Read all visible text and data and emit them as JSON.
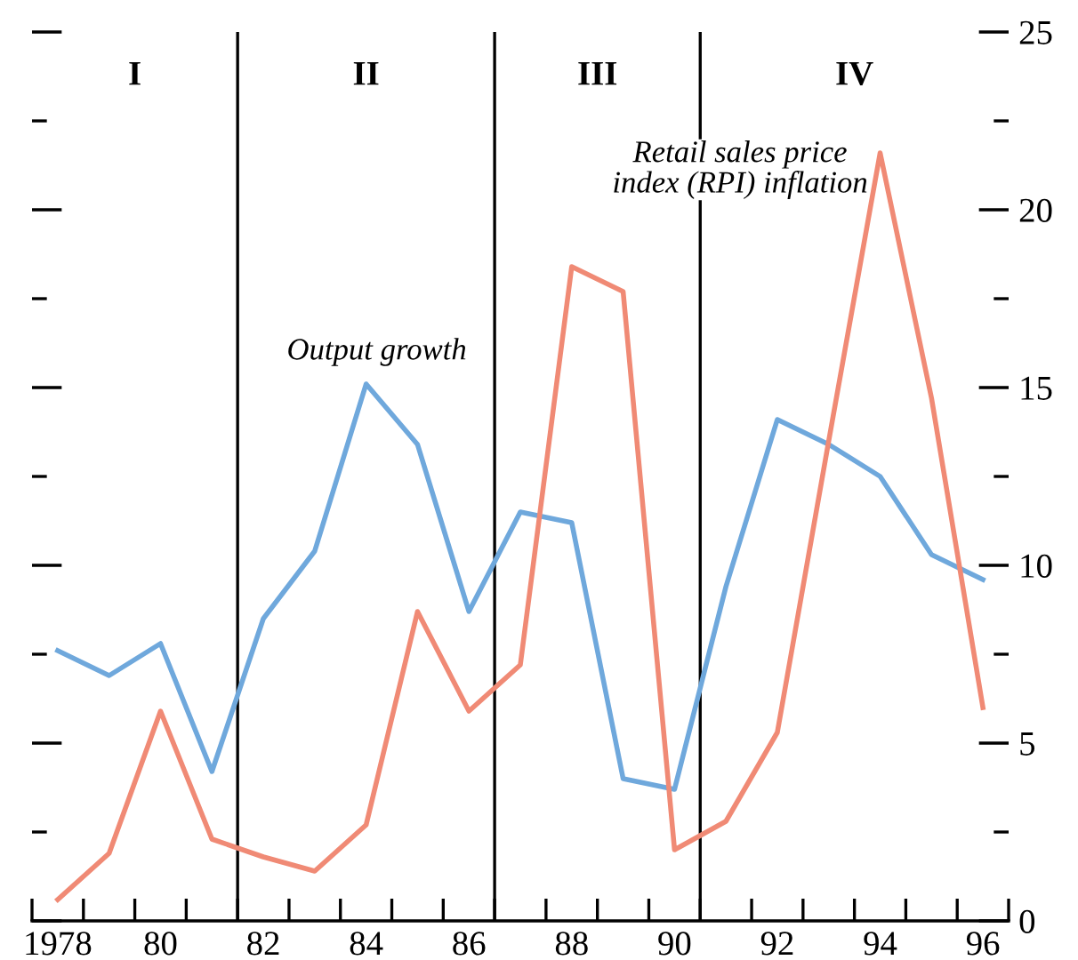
{
  "chart_data": {
    "type": "line",
    "x": [
      1978,
      1979,
      1980,
      1981,
      1982,
      1983,
      1984,
      1985,
      1986,
      1987,
      1988,
      1989,
      1990,
      1991,
      1992,
      1993,
      1994,
      1995,
      1996
    ],
    "series": [
      {
        "color": "#6fa8dc",
        "axis": "y2",
        "values": [
          7.6,
          6.9,
          7.8,
          4.2,
          8.5,
          10.4,
          15.1,
          13.4,
          8.7,
          11.5,
          11.2,
          4.0,
          3.7,
          9.4,
          14.1,
          13.4,
          12.5,
          10.3,
          9.6
        ]
      },
      {
        "color": "#f08a75",
        "axis": "y2",
        "values": [
          0.6,
          1.9,
          5.9,
          2.3,
          1.8,
          1.4,
          2.7,
          8.7,
          5.9,
          7.2,
          18.4,
          17.7,
          2.0,
          2.8,
          5.3,
          13.5,
          21.6,
          14.7,
          6.0
        ]
      }
    ],
    "xlim": [
      1977.5,
      1996.5
    ],
    "xticks": [
      {
        "value": 1978,
        "label": "1978"
      },
      {
        "value": 1980,
        "label": "80"
      },
      {
        "value": 1982,
        "label": "82"
      },
      {
        "value": 1984,
        "label": "84"
      },
      {
        "value": 1986,
        "label": "86"
      },
      {
        "value": 1988,
        "label": "88"
      },
      {
        "value": 1990,
        "label": "90"
      },
      {
        "value": 1992,
        "label": "92"
      },
      {
        "value": 1994,
        "label": "94"
      },
      {
        "value": 1996,
        "label": "96"
      },
      {
        "value": 1977.5,
        "label": null
      },
      {
        "value": 1978.5,
        "label": null
      },
      {
        "value": 1979.5,
        "label": null
      },
      {
        "value": 1980.5,
        "label": null
      },
      {
        "value": 1981.5,
        "label": null
      },
      {
        "value": 1982.5,
        "label": null
      },
      {
        "value": 1983.5,
        "label": null
      },
      {
        "value": 1984.5,
        "label": null
      },
      {
        "value": 1985.5,
        "label": null
      },
      {
        "value": 1986.5,
        "label": null
      },
      {
        "value": 1987.5,
        "label": null
      },
      {
        "value": 1988.5,
        "label": null
      },
      {
        "value": 1989.5,
        "label": null
      },
      {
        "value": 1990.5,
        "label": null
      },
      {
        "value": 1991.5,
        "label": null
      },
      {
        "value": 1992.5,
        "label": null
      },
      {
        "value": 1993.5,
        "label": null
      },
      {
        "value": 1994.5,
        "label": null
      },
      {
        "value": 1995.5,
        "label": null
      },
      {
        "value": 1996.5,
        "label": null
      }
    ],
    "y2lim": [
      0,
      25
    ],
    "y2ticks": [
      0,
      {
        "value": 2.5,
        "label": null
      },
      5,
      {
        "value": 7.5,
        "label": null
      },
      10,
      {
        "value": 12.5,
        "label": null
      },
      15,
      {
        "value": 17.5,
        "label": null
      },
      20,
      {
        "value": 22.5,
        "label": null
      },
      25
    ],
    "ref_lines": [
      {
        "axis": "x",
        "value": 1981.5,
        "color": "#000000"
      },
      {
        "axis": "x",
        "value": 1986.5,
        "color": "#000000"
      },
      {
        "axis": "x",
        "value": 1990.5,
        "color": "#000000"
      }
    ],
    "annotations": [
      "I",
      "II",
      "III",
      "IV",
      "Output growth",
      "Retail sales price\nindex (RPI) inflation"
    ],
    "grid": false,
    "marker": "none",
    "line_style": "solid"
  }
}
